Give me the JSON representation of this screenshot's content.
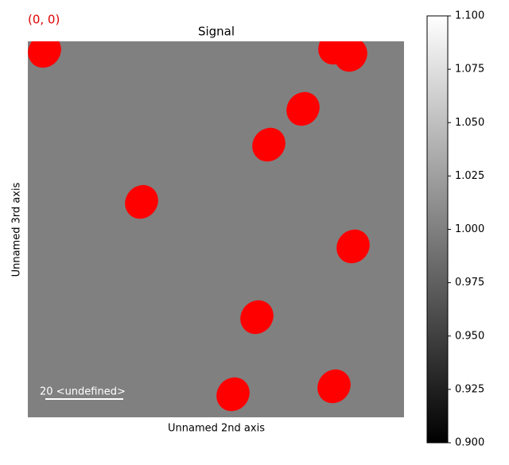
{
  "chart_data": {
    "type": "image",
    "title": "Signal",
    "annotation": "(0, 0)",
    "xlabel": "Unnamed 2nd axis",
    "ylabel": "Unnamed 3rd axis",
    "scalebar_label": "20 <undefined>",
    "image_color": "#808080",
    "marker_color": "#ff0000",
    "colorbar_lim": [
      0.9,
      1.1
    ],
    "colorbar_ticks": [
      {
        "value": 0.9,
        "label": "0.900"
      },
      0.925,
      {
        "value": 0.95,
        "label": "0.950"
      },
      0.975,
      {
        "value": 1.0,
        "label": "1.000"
      },
      1.025,
      {
        "value": 1.05,
        "label": "1.050"
      },
      1.075,
      {
        "value": 1.1,
        "label": "1.100"
      }
    ]
  }
}
